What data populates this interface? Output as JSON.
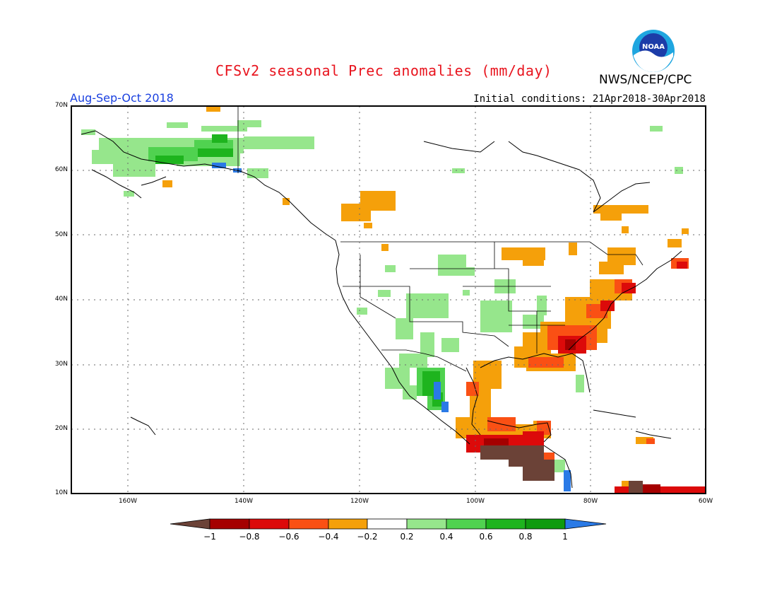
{
  "header": {
    "title": "CFSv2 seasonal Prec anomalies (mm/day)",
    "org": "NWS/NCEP/CPC",
    "logo_text": "NOAA",
    "period": "Aug-Sep-Oct 2018",
    "initial_conditions": "Initial conditions: 21Apr2018-30Apr2018"
  },
  "map": {
    "lat_labels": [
      "70N",
      "60N",
      "50N",
      "40N",
      "30N",
      "20N",
      "10N"
    ],
    "lon_labels": [
      "160W",
      "140W",
      "120W",
      "100W",
      "80W",
      "60W"
    ],
    "lat_range": [
      10,
      70
    ],
    "lon_range": [
      -172,
      -60
    ],
    "grid": "dotted"
  },
  "colorbar": {
    "labels": [
      "−1",
      "−0.8",
      "−0.6",
      "−0.4",
      "−0.2",
      "0.2",
      "0.4",
      "0.6",
      "0.8",
      "1"
    ],
    "colors": {
      "below_min": "#6b4237",
      "bins": [
        "#a50000",
        "#dc0a0a",
        "#fa5014",
        "#f5a00a",
        "#ffffff",
        "#96e68c",
        "#50d250",
        "#1eb41e",
        "#0f9b0f"
      ],
      "above_max": "#2a7ae6"
    }
  },
  "colors": {
    "title": "#e8141e",
    "period": "#1a40e0",
    "dry_strong": "#6b4237",
    "dry": "#f5a00a",
    "wet": "#96e68c"
  }
}
